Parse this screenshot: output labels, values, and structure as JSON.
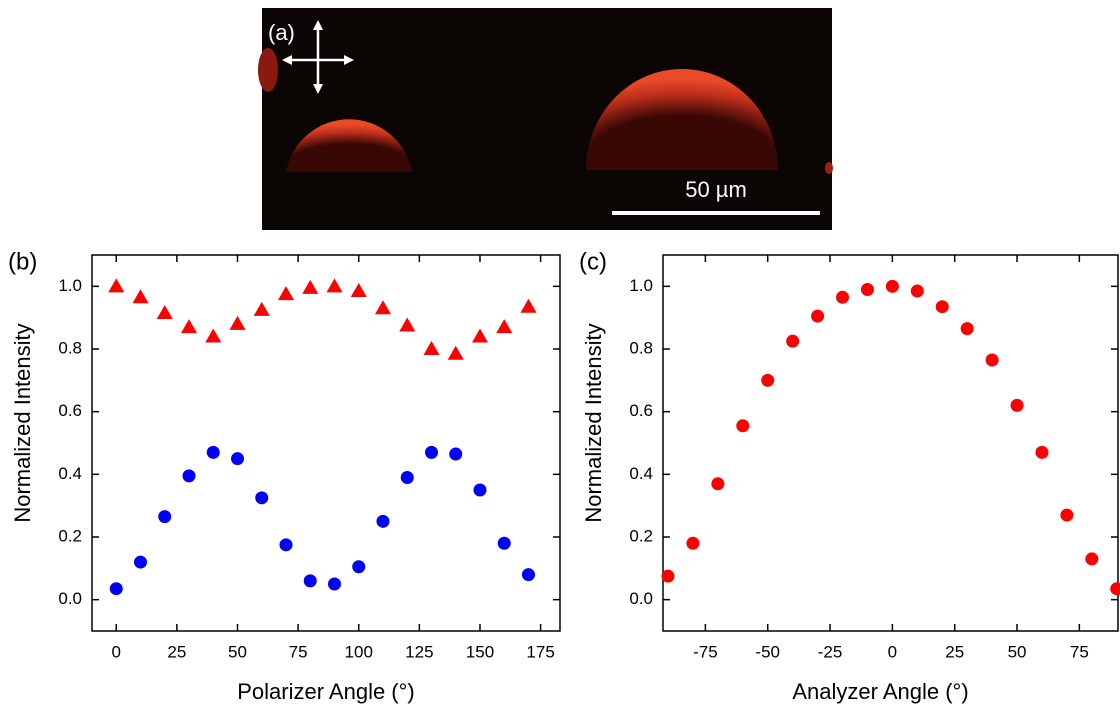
{
  "panel_a": {
    "label": "(a)",
    "scale_bar": "50 µm"
  },
  "chart_data": [
    {
      "type": "scatter",
      "panel_label": "(b)",
      "x_label": "Polarizer Angle (°)",
      "y_label": "Normalized Intensity",
      "xlim": [
        -10,
        183
      ],
      "ylim": [
        -0.1,
        1.1
      ],
      "xticks": [
        0,
        25,
        50,
        75,
        100,
        125,
        150,
        175
      ],
      "yticks": [
        {
          "value": 0,
          "label": "0.0"
        },
        0.2,
        0.4,
        0.6,
        0.8,
        {
          "value": 1,
          "label": "1.0"
        }
      ],
      "x": [
        0,
        10,
        20,
        30,
        40,
        50,
        60,
        70,
        80,
        90,
        100,
        110,
        120,
        130,
        140,
        150,
        160,
        170
      ],
      "series": [
        {
          "color": "#ff0000",
          "marker": "triangle",
          "values": [
            1.0,
            0.965,
            0.915,
            0.87,
            0.84,
            0.88,
            0.925,
            0.975,
            0.995,
            1.0,
            0.985,
            0.93,
            0.875,
            0.8,
            0.785,
            0.84,
            0.87,
            0.935
          ]
        },
        {
          "color": "#0000ff",
          "marker": "circle",
          "values": [
            0.035,
            0.12,
            0.265,
            0.395,
            0.47,
            0.45,
            0.325,
            0.175,
            0.06,
            0.05,
            0.105,
            0.25,
            0.39,
            0.47,
            0.465,
            0.35,
            0.18,
            0.08
          ]
        }
      ]
    },
    {
      "type": "scatter",
      "panel_label": "(c)",
      "x_label": "Analyzer Angle (°)",
      "y_label": "Normalized Intensity",
      "xlim": [
        -92,
        90.5
      ],
      "ylim": [
        -0.1,
        1.1
      ],
      "xticks": [
        -75,
        -50,
        -25,
        0,
        25,
        50,
        75
      ],
      "yticks": [
        {
          "value": 0,
          "label": "0.0"
        },
        0.2,
        0.4,
        0.6,
        0.8,
        {
          "value": 1,
          "label": "1.0"
        }
      ],
      "x": [
        -90,
        -80,
        -70,
        -60,
        -50,
        -40,
        -30,
        -20,
        -10,
        0,
        10,
        20,
        30,
        40,
        50,
        60,
        70,
        80,
        90
      ],
      "series": [
        {
          "color": "#ff0000",
          "marker": "circle",
          "values": [
            0.075,
            0.18,
            0.37,
            0.555,
            0.7,
            0.825,
            0.905,
            0.965,
            0.99,
            1.0,
            0.985,
            0.935,
            0.865,
            0.765,
            0.62,
            0.47,
            0.27,
            0.13,
            0.035
          ]
        }
      ]
    }
  ]
}
